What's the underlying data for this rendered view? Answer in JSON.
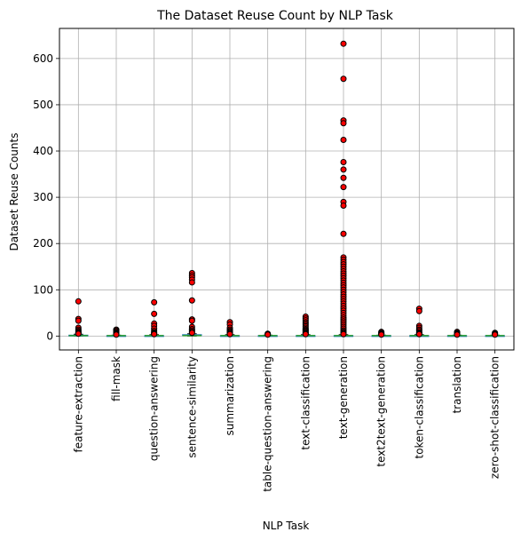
{
  "chart_data": {
    "type": "box",
    "title": "The Dataset Reuse Count by NLP Task",
    "xlabel": "NLP Task",
    "ylabel": "Dataset Reuse Counts",
    "ylim": [
      -30,
      665
    ],
    "yticks": [
      0,
      100,
      200,
      300,
      400,
      500,
      600
    ],
    "grid": true,
    "box_color": "#1f77b4",
    "median_color": "#2ca02c",
    "flier_face_color": "#ff0000",
    "flier_edge_color": "#000000",
    "categories": [
      "feature-extraction",
      "fill-mask",
      "question-answering",
      "sentence-similarity",
      "summarization",
      "table-question-answering",
      "text-classification",
      "text-generation",
      "text2text-generation",
      "token-classification",
      "translation",
      "zero-shot-classification"
    ],
    "boxes": [
      {
        "q1": 0,
        "median": 1,
        "q3": 2,
        "whislo": 0,
        "whishi": 4,
        "fliers": [
          75,
          37,
          33,
          18,
          14,
          11,
          9,
          7,
          6,
          5
        ]
      },
      {
        "q1": 0,
        "median": 1,
        "q3": 1,
        "whislo": 0,
        "whishi": 2,
        "fliers": [
          14,
          12,
          10,
          8,
          6,
          5,
          4,
          3
        ]
      },
      {
        "q1": 0,
        "median": 1,
        "q3": 1,
        "whislo": 0,
        "whishi": 3,
        "fliers": [
          73,
          48,
          27,
          22,
          16,
          11,
          8,
          6,
          5,
          4
        ]
      },
      {
        "q1": 1,
        "median": 1,
        "q3": 3,
        "whislo": 0,
        "whishi": 5,
        "fliers": [
          136,
          131,
          127,
          122,
          116,
          77,
          36,
          33,
          20,
          15,
          12,
          9,
          7
        ]
      },
      {
        "q1": 0,
        "median": 1,
        "q3": 1,
        "whislo": 0,
        "whishi": 3,
        "fliers": [
          30,
          25,
          18,
          14,
          11,
          9,
          7,
          5,
          4
        ]
      },
      {
        "q1": 0,
        "median": 1,
        "q3": 1,
        "whislo": 0,
        "whishi": 2,
        "fliers": [
          5,
          4,
          3
        ]
      },
      {
        "q1": 0,
        "median": 1,
        "q3": 1,
        "whislo": 0,
        "whishi": 3,
        "fliers": [
          42,
          38,
          34,
          30,
          27,
          24,
          21,
          18,
          15,
          13,
          11,
          9,
          7,
          6,
          5,
          4
        ]
      },
      {
        "q1": 0,
        "median": 1,
        "q3": 1,
        "whislo": 0,
        "whishi": 3,
        "fliers": [
          632,
          556,
          466,
          460,
          424,
          376,
          360,
          342,
          322,
          290,
          282,
          221,
          170,
          165,
          160,
          155,
          150,
          145,
          140,
          135,
          130,
          125,
          120,
          115,
          110,
          105,
          100,
          95,
          90,
          85,
          80,
          75,
          70,
          65,
          60,
          55,
          50,
          45,
          40,
          36,
          32,
          28,
          24,
          20,
          16,
          12,
          9,
          7,
          5,
          4
        ]
      },
      {
        "q1": 0,
        "median": 1,
        "q3": 1,
        "whislo": 0,
        "whishi": 2,
        "fliers": [
          9,
          7,
          6,
          5,
          4,
          3
        ]
      },
      {
        "q1": 0,
        "median": 1,
        "q3": 1,
        "whislo": 0,
        "whishi": 3,
        "fliers": [
          59,
          54,
          22,
          18,
          14,
          11,
          8,
          6,
          5,
          4
        ]
      },
      {
        "q1": 0,
        "median": 1,
        "q3": 1,
        "whislo": 0,
        "whishi": 2,
        "fliers": [
          9,
          7,
          6,
          5,
          4,
          3
        ]
      },
      {
        "q1": 0,
        "median": 1,
        "q3": 1,
        "whislo": 0,
        "whishi": 2,
        "fliers": [
          7,
          5,
          4,
          3
        ]
      }
    ]
  }
}
